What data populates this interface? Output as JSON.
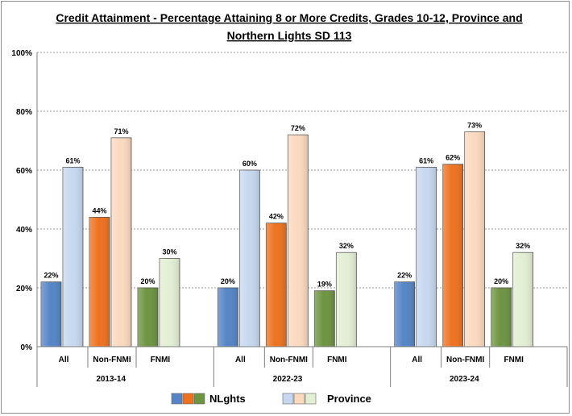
{
  "chart_data": {
    "type": "bar",
    "title_lines": [
      "Credit Attainment - Percentage Attaining 8 or More Credits, Grades 10-12, Province and",
      "Northern Lights SD 113"
    ],
    "ylim": [
      0,
      100
    ],
    "y_ticks": [
      "0%",
      "20%",
      "40%",
      "60%",
      "80%",
      "100%"
    ],
    "grid": true,
    "legend_placement": "bottom",
    "groups": [
      {
        "label": "2013-14",
        "categories": [
          {
            "label": "All",
            "nlghts": 22,
            "province": 61,
            "nlghts_label": "22%",
            "province_label": "61%"
          },
          {
            "label": "Non-FNMI",
            "nlghts": 44,
            "province": 71,
            "nlghts_label": "44%",
            "province_label": "71%"
          },
          {
            "label": "FNMI",
            "nlghts": 20,
            "province": 30,
            "nlghts_label": "20%",
            "province_label": "30%"
          }
        ]
      },
      {
        "label": "2022-23",
        "categories": [
          {
            "label": "All",
            "nlghts": 20,
            "province": 60,
            "nlghts_label": "20%",
            "province_label": "60%"
          },
          {
            "label": "Non-FNMI",
            "nlghts": 42,
            "province": 72,
            "nlghts_label": "42%",
            "province_label": "72%"
          },
          {
            "label": "FNMI",
            "nlghts": 19,
            "province": 32,
            "nlghts_label": "19%",
            "province_label": "32%"
          }
        ]
      },
      {
        "label": "2023-24",
        "categories": [
          {
            "label": "All",
            "nlghts": 22,
            "province": 61,
            "nlghts_label": "22%",
            "province_label": "61%"
          },
          {
            "label": "Non-FNMI",
            "nlghts": 62,
            "province": 73,
            "nlghts_label": "62%",
            "province_label": "73%"
          },
          {
            "label": "FNMI",
            "nlghts": 20,
            "province": 32,
            "nlghts_label": "20%",
            "province_label": "32%"
          }
        ]
      }
    ],
    "series": [
      {
        "name": "NLghts",
        "colors": {
          "All": "#5585c6",
          "Non-FNMI": "#ed7220",
          "FNMI": "#6d9441"
        }
      },
      {
        "name": "Province",
        "colors": {
          "All": "#c6d8ef",
          "Non-FNMI": "#fbd9bf",
          "FNMI": "#e3efd3"
        }
      }
    ]
  }
}
